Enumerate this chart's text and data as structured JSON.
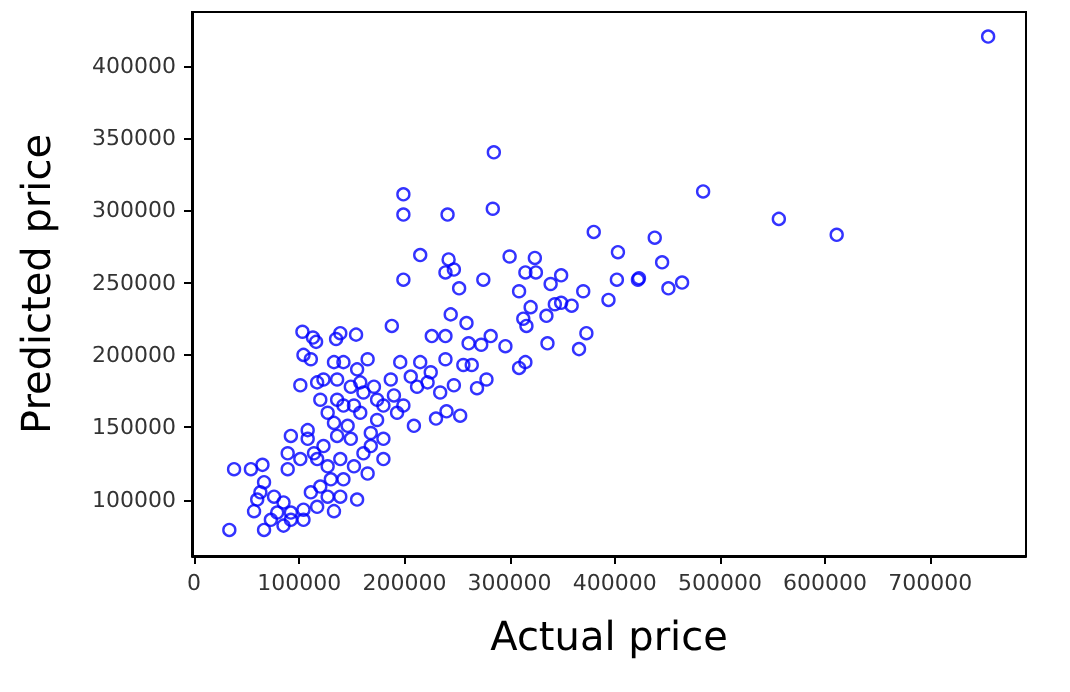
{
  "chart_data": {
    "type": "scatter",
    "xlabel": "Actual price",
    "ylabel": "Predicted price",
    "marker": "circle",
    "grid": false,
    "xlim": [
      -2000,
      791000
    ],
    "xticks": [
      0,
      100000,
      200000,
      300000,
      400000,
      500000,
      600000,
      700000
    ],
    "ylim": [
      61000,
      437000
    ],
    "yticks": [
      100000,
      150000,
      200000,
      250000,
      300000,
      350000,
      400000
    ],
    "series": [
      {
        "color": "#0000ff",
        "x": [
          285000,
          199000,
          199000,
          241000,
          284000,
          215000,
          242000,
          239000,
          247000,
          252000,
          199000,
          275000,
          300000,
          324000,
          315000,
          325000,
          349000,
          339000,
          309000,
          370000,
          380000,
          403000,
          402000,
          422000,
          394000,
          320000,
          343000,
          349000,
          359000,
          335000,
          316000,
          313000,
          373000,
          366000,
          336000,
          309000,
          315000,
          244000,
          259000,
          188000,
          103000,
          113000,
          116000,
          104000,
          111000,
          101000,
          139000,
          154000,
          135000,
          226000,
          239000,
          282000,
          273000,
          261000,
          296000,
          253000,
          230000,
          240000,
          209000,
          278000,
          269000,
          264000,
          247000,
          256000,
          239000,
          215000,
          222000,
          206000,
          190000,
          180000,
          193000,
          174000,
          168000,
          180000,
          199000,
          187000,
          196000,
          165000,
          155000,
          142000,
          133000,
          123000,
          117000,
          136000,
          149000,
          161000,
          136000,
          142000,
          127000,
          133000,
          146000,
          158000,
          168000,
          149000,
          136000,
          123000,
          114000,
          108000,
          101000,
          117000,
          127000,
          139000,
          152000,
          142000,
          130000,
          120000,
          111000,
          127000,
          139000,
          155000,
          133000,
          117000,
          104000,
          92000,
          85000,
          76000,
          63000,
          66500,
          60000,
          57000,
          79000,
          85000,
          73000,
          66500,
          92000,
          104000,
          89000,
          89000,
          108000,
          92000,
          165000,
          161000,
          180000,
          152000,
          38000,
          54000,
          65000,
          33500,
          755000,
          484000,
          556000,
          611000,
          438000,
          445000,
          423000,
          451000,
          464000,
          120000,
          158000,
          174000,
          171000,
          212000,
          225000,
          234000
        ],
        "values": [
          340000,
          311000,
          297000,
          297000,
          301000,
          269000,
          266000,
          257000,
          259000,
          246000,
          252000,
          252000,
          268000,
          267000,
          257000,
          257000,
          255000,
          249000,
          244000,
          244000,
          285000,
          271000,
          252000,
          252000,
          238000,
          233000,
          235000,
          236000,
          234000,
          227000,
          220000,
          225000,
          215000,
          204000,
          208000,
          191000,
          195000,
          228000,
          222000,
          220000,
          216000,
          212000,
          209000,
          200000,
          197000,
          179000,
          215000,
          214000,
          211000,
          213000,
          213000,
          213000,
          207000,
          208000,
          206000,
          158000,
          156000,
          161000,
          151000,
          183000,
          177000,
          193000,
          179000,
          193000,
          197000,
          195000,
          181000,
          185000,
          172000,
          165000,
          160000,
          155000,
          146000,
          142000,
          165000,
          183000,
          195000,
          197000,
          190000,
          195000,
          195000,
          183000,
          181000,
          183000,
          178000,
          174000,
          169000,
          165000,
          160000,
          153000,
          151000,
          160000,
          137000,
          142000,
          144000,
          137000,
          132000,
          142000,
          128000,
          128000,
          123000,
          128000,
          123000,
          114000,
          114000,
          109000,
          105000,
          102000,
          102000,
          100000,
          92000,
          95000,
          93000,
          91000,
          98000,
          102000,
          105000,
          112000,
          100000,
          92000,
          91000,
          82000,
          86000,
          79000,
          86000,
          86000,
          121000,
          132000,
          148000,
          144000,
          118000,
          132000,
          128000,
          165000,
          121000,
          121000,
          124000,
          79000,
          420000,
          313000,
          294000,
          283000,
          281000,
          264000,
          253000,
          246000,
          250000,
          169000,
          181000,
          169000,
          178000,
          178000,
          188000,
          174000
        ]
      }
    ]
  }
}
